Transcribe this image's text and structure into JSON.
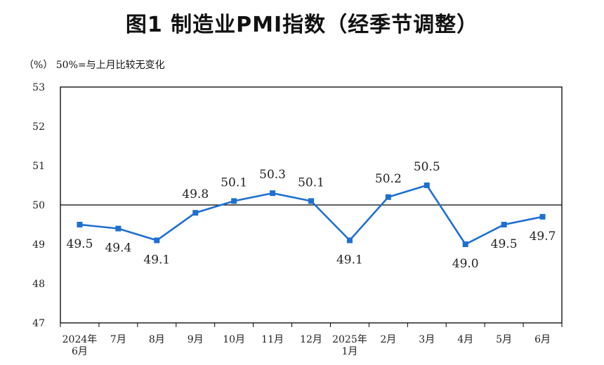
{
  "title": "图1  制造业PMI指数（经季节调整）",
  "note": "（%）  50%=与上月比较无变化",
  "chart_data": {
    "type": "line",
    "categories": [
      [
        "2024年",
        "6月"
      ],
      [
        "7月"
      ],
      [
        "8月"
      ],
      [
        "9月"
      ],
      [
        "10月"
      ],
      [
        "11月"
      ],
      [
        "12月"
      ],
      [
        "2025年",
        "1月"
      ],
      [
        "2月"
      ],
      [
        "3月"
      ],
      [
        "4月"
      ],
      [
        "5月"
      ],
      [
        "6月"
      ]
    ],
    "values": [
      49.5,
      49.4,
      49.1,
      49.8,
      50.1,
      50.3,
      50.1,
      49.1,
      50.2,
      50.5,
      49.0,
      49.5,
      49.7
    ],
    "data_labels": [
      "49.5",
      "49.4",
      "49.1",
      "49.8",
      "50.1",
      "50.3",
      "50.1",
      "49.1",
      "50.2",
      "50.5",
      "49.0",
      "49.5",
      "49.7"
    ],
    "label_position": [
      "below",
      "below",
      "below",
      "above",
      "above",
      "above",
      "above",
      "below",
      "above",
      "above",
      "below",
      "below",
      "below"
    ],
    "ylim": [
      47,
      53
    ],
    "yticks": [
      "53",
      "52",
      "51",
      "50",
      "49",
      "48",
      "47"
    ],
    "reference_line": 50,
    "grid": false,
    "colors": {
      "line": "#1f6fd1",
      "marker": "#1f6fd1",
      "reference": "#000000"
    }
  }
}
